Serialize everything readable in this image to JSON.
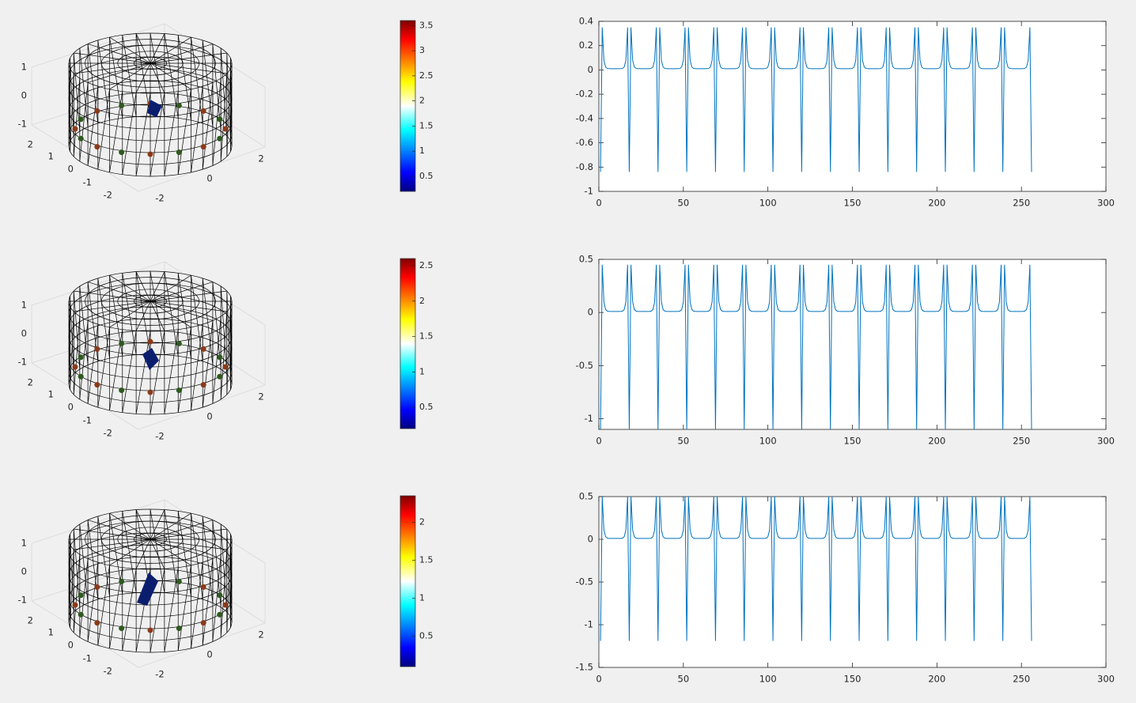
{
  "chart_data": [
    {
      "type": "line",
      "panel": 1,
      "color": "#0072BD",
      "xlim": [
        0,
        300
      ],
      "ylim": [
        -1,
        0.4
      ],
      "xticks": [
        "0",
        "50",
        "100",
        "150",
        "200",
        "250",
        "300"
      ],
      "yticks": [
        "0.4",
        "0.2",
        "0",
        "-0.2",
        "-0.4",
        "-0.6",
        "-0.8",
        "-1"
      ],
      "series": [
        {
          "low": -0.84,
          "peak": 0.35,
          "base": 0.01
        }
      ],
      "pattern": {
        "n_points": 256,
        "period": 17,
        "first_min": 1
      }
    },
    {
      "type": "line",
      "panel": 2,
      "color": "#0072BD",
      "xlim": [
        0,
        300
      ],
      "ylim": [
        -1.1,
        0.5
      ],
      "xticks": [
        "0",
        "50",
        "100",
        "150",
        "200",
        "250",
        "300"
      ],
      "yticks": [
        "0.5",
        "0",
        "-0.5",
        "-1"
      ],
      "series": [
        {
          "low": -1.1,
          "peak": 0.45,
          "base": 0.01
        }
      ],
      "pattern": {
        "n_points": 256,
        "period": 17,
        "first_min": 1
      }
    },
    {
      "type": "line",
      "panel": 3,
      "color": "#0072BD",
      "xlim": [
        0,
        300
      ],
      "ylim": [
        -1.5,
        0.5
      ],
      "xticks": [
        "0",
        "50",
        "100",
        "150",
        "200",
        "250",
        "300"
      ],
      "yticks": [
        "0.5",
        "0",
        "-0.5",
        "-1",
        "-1.5"
      ],
      "series": [
        {
          "low": -1.19,
          "peak": 0.5,
          "base": 0.01
        }
      ],
      "pattern": {
        "n_points": 256,
        "period": 17,
        "first_min": 1
      }
    }
  ],
  "colorbars": [
    {
      "ticks": [
        "3.5",
        "3",
        "2.5",
        "2",
        "1.5",
        "1",
        "0.5"
      ],
      "range": [
        0.2,
        3.6
      ]
    },
    {
      "ticks": [
        "2.5",
        "2",
        "1.5",
        "1",
        "0.5"
      ],
      "range": [
        0.2,
        2.6
      ]
    },
    {
      "ticks": [
        "2",
        "1.5",
        "1",
        "0.5"
      ],
      "range": [
        0.1,
        2.35
      ]
    }
  ],
  "mesh3d": {
    "zticks": [
      "1",
      "0",
      "-1"
    ],
    "yticks": [
      "2",
      "1",
      "0",
      "-1",
      "-2"
    ],
    "xticks": [
      "2",
      "0",
      "-2"
    ],
    "colors": {
      "wire": "#000000",
      "inclusion": "#0b1e6e",
      "electrode_dark": "#2d5a1e",
      "electrode_light": "#8b3a1a"
    }
  }
}
